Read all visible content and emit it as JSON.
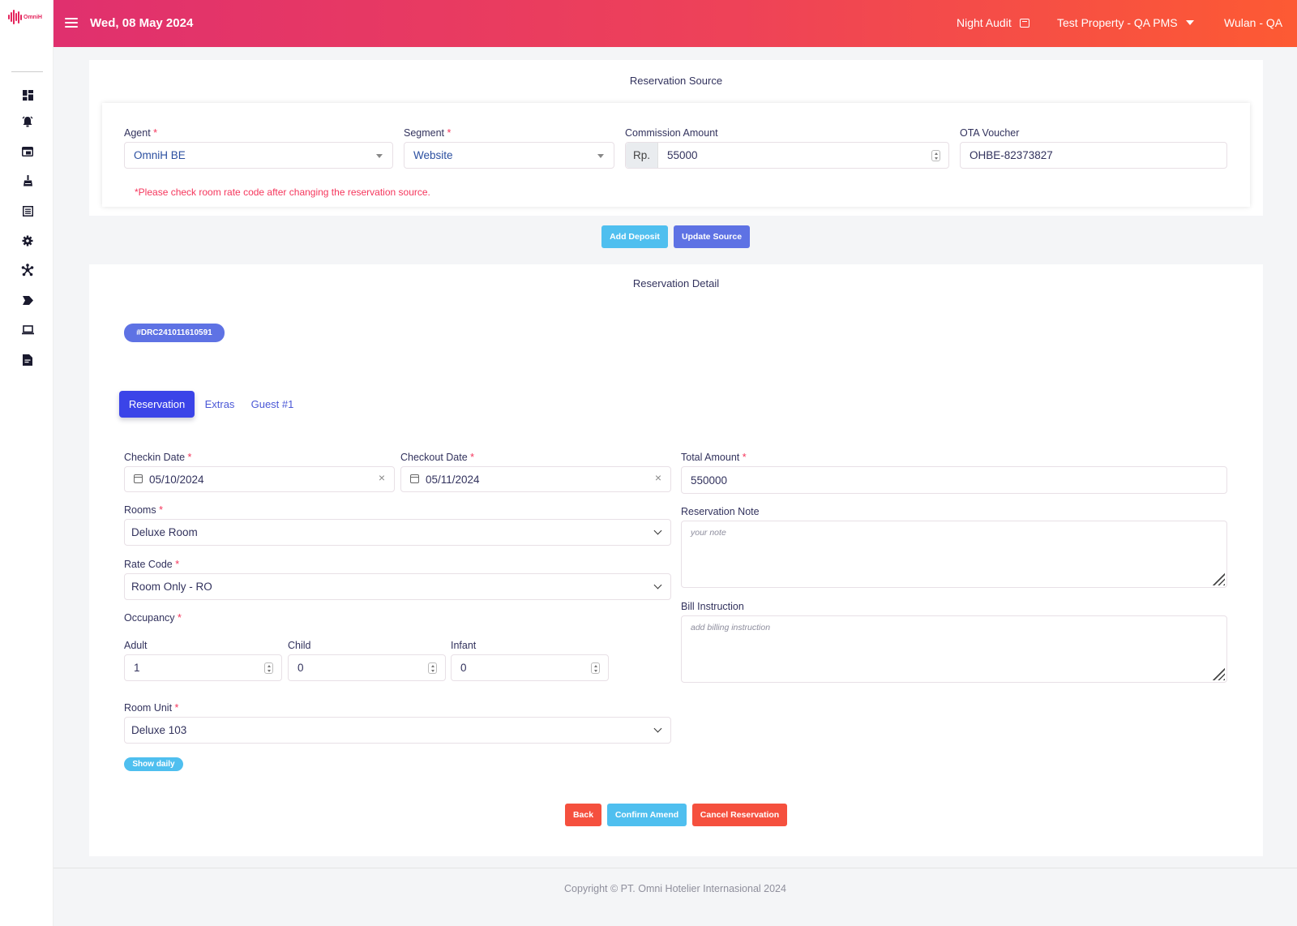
{
  "app": {
    "logo_text": "OmniH"
  },
  "header": {
    "date": "Wed, 08 May 2024",
    "night_audit": "Night Audit",
    "property": "Test Property - QA PMS",
    "user": "Wulan - QA"
  },
  "sidebar": {
    "icons": [
      "dashboard-icon",
      "alarm-bell-icon",
      "window-icon",
      "housekeeping-icon",
      "report-list-icon",
      "gear-icon",
      "network-icon",
      "tag-icon",
      "laptop-icon",
      "file-icon"
    ]
  },
  "source": {
    "title": "Reservation Source",
    "agent_label": "Agent",
    "agent_value": "OmniH BE",
    "segment_label": "Segment",
    "segment_value": "Website",
    "commission_label": "Commission Amount",
    "commission_prefix": "Rp.",
    "commission_value": "55000",
    "ota_label": "OTA Voucher",
    "ota_value": "OHBE-82373827",
    "warning": "*Please check room rate code after changing the reservation source.",
    "add_deposit": "Add Deposit",
    "update_source": "Update Source",
    "required_mark": "*"
  },
  "detail": {
    "title": "Reservation Detail",
    "booking_code": "#DRC241011610591",
    "tabs": [
      "Reservation",
      "Extras",
      "Guest #1"
    ],
    "checkin_label": "Checkin Date",
    "checkin_value": "05/10/2024",
    "checkout_label": "Checkout Date",
    "checkout_value": "05/11/2024",
    "total_label": "Total Amount",
    "total_value": "550000",
    "rooms_label": "Rooms",
    "rooms_value": "Deluxe Room",
    "rate_label": "Rate Code",
    "rate_value": "Room Only - RO",
    "occupancy_label": "Occupancy",
    "adult_label": "Adult",
    "adult_value": "1",
    "child_label": "Child",
    "child_value": "0",
    "infant_label": "Infant",
    "infant_value": "0",
    "unit_label": "Room Unit",
    "unit_value": "Deluxe 103",
    "show_daily": "Show daily",
    "note_label": "Reservation Note",
    "note_placeholder": "your note",
    "bill_label": "Bill Instruction",
    "bill_placeholder": "add billing instruction",
    "back": "Back",
    "confirm": "Confirm Amend",
    "cancel": "Cancel Reservation",
    "clear_symbol": "×"
  },
  "footer": {
    "copyright": "Copyright © PT. Omni Hotelier Internasional 2024"
  },
  "colors": {
    "header_start": "#e0306e",
    "header_end": "#fd5a33",
    "primary": "#5e72e4",
    "info": "#4fbfef",
    "danger": "#f5503e",
    "active_tab": "#3b44e8"
  }
}
